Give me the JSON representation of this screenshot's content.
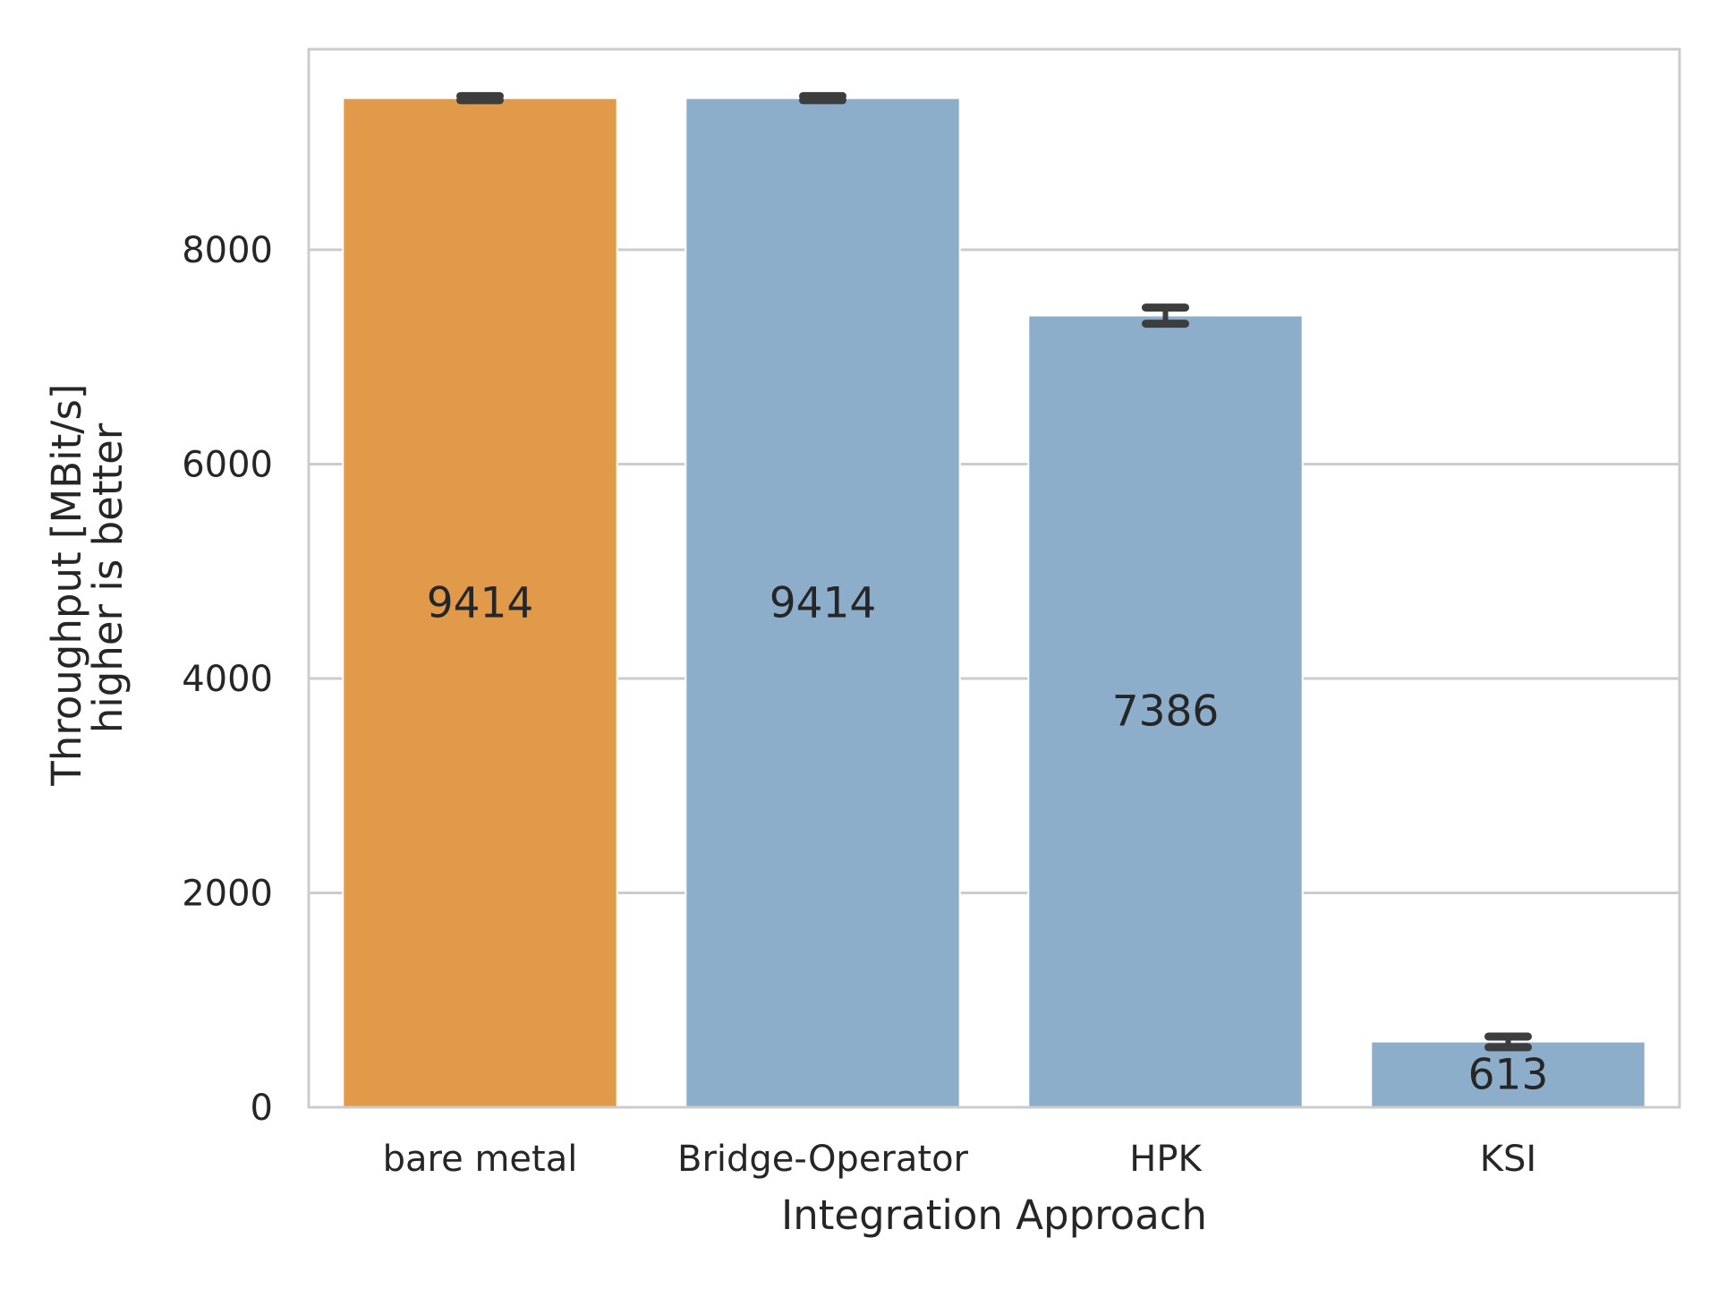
{
  "chart_data": {
    "type": "bar",
    "categories": [
      "bare metal",
      "Bridge-Operator",
      "HPK",
      "KSI"
    ],
    "values": [
      9414,
      9414,
      7386,
      613
    ],
    "value_labels": [
      "9414",
      "9414",
      "7386",
      "613"
    ],
    "error_low": [
      9395,
      9395,
      7310,
      560
    ],
    "error_high": [
      9433,
      9433,
      7460,
      660
    ],
    "bar_colors": [
      "#e09a4a",
      "#8daecb",
      "#8daecb",
      "#8daecb"
    ],
    "xlabel": "Integration Approach",
    "ylabel_line1": "Throughput  [MBit/s]",
    "ylabel_line2": "higher is better",
    "ylim": [
      0,
      9870
    ],
    "yticks": [
      0,
      2000,
      4000,
      6000,
      8000
    ],
    "ytick_labels": [
      "0",
      "2000",
      "4000",
      "6000",
      "8000"
    ],
    "grid": true,
    "grid_axis": "y",
    "legend": "none",
    "colors": {
      "grid": "#cccccc",
      "frame": "#cccccc",
      "errorbar": "#3d3d3d"
    }
  }
}
